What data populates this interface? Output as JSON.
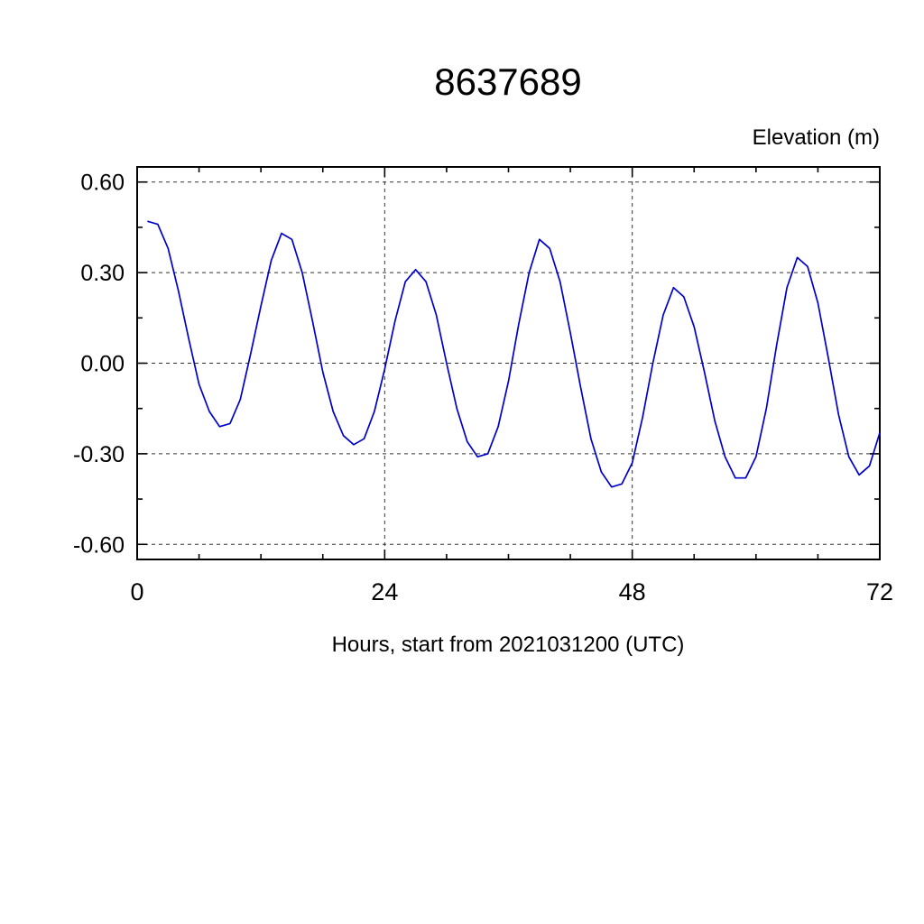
{
  "chart_data": {
    "type": "line",
    "title": "8637689",
    "ylabel": "Elevation (m)",
    "ylabel_position": "top-right",
    "xlabel": "Hours, start from 2021031200 (UTC)",
    "xlim": [
      0,
      72
    ],
    "ylim": [
      -0.65,
      0.65
    ],
    "grid": true,
    "legend": "none",
    "line_color": "#0000CC",
    "xtick_values": [
      0,
      24,
      48,
      72
    ],
    "xtick_labels": [
      "0",
      "24",
      "48",
      "72"
    ],
    "xtick_minor": [
      6,
      12,
      18,
      30,
      36,
      42,
      54,
      60,
      66
    ],
    "ytick_values": [
      0.6,
      0.3,
      0.0,
      -0.3,
      -0.6
    ],
    "ytick_labels": [
      "0.60",
      "0.30",
      "0.00",
      "-0.30",
      "-0.60"
    ],
    "ytick_minor": [
      0.45,
      0.15,
      -0.15,
      -0.45
    ],
    "xgrid": [
      24,
      48
    ],
    "ygrid": [
      0.6,
      0.3,
      0.0,
      -0.3,
      -0.6
    ],
    "series": [
      {
        "name": "elevation",
        "x": [
          1,
          2,
          3,
          4,
          5,
          6,
          7,
          8,
          9,
          10,
          11,
          12,
          13,
          14,
          15,
          16,
          17,
          18,
          19,
          20,
          21,
          22,
          23,
          24,
          25,
          26,
          27,
          28,
          29,
          30,
          31,
          32,
          33,
          34,
          35,
          36,
          37,
          38,
          39,
          40,
          41,
          42,
          43,
          44,
          45,
          46,
          47,
          48,
          49,
          50,
          51,
          52,
          53,
          54,
          55,
          56,
          57,
          58,
          59,
          60,
          61,
          62,
          63,
          64,
          65,
          66,
          67,
          68,
          69,
          70,
          71,
          72
        ],
        "y": [
          0.47,
          0.46,
          0.38,
          0.24,
          0.08,
          -0.07,
          -0.16,
          -0.21,
          -0.2,
          -0.12,
          0.03,
          0.19,
          0.34,
          0.43,
          0.41,
          0.3,
          0.14,
          -0.03,
          -0.16,
          -0.24,
          -0.27,
          -0.25,
          -0.16,
          -0.02,
          0.14,
          0.27,
          0.31,
          0.27,
          0.16,
          0.0,
          -0.15,
          -0.26,
          -0.31,
          -0.3,
          -0.21,
          -0.06,
          0.13,
          0.3,
          0.41,
          0.38,
          0.27,
          0.1,
          -0.08,
          -0.25,
          -0.36,
          -0.41,
          -0.4,
          -0.33,
          -0.18,
          0.0,
          0.16,
          0.25,
          0.22,
          0.12,
          -0.03,
          -0.19,
          -0.31,
          -0.38,
          -0.38,
          -0.31,
          -0.15,
          0.06,
          0.25,
          0.35,
          0.32,
          0.2,
          0.02,
          -0.17,
          -0.31,
          -0.37,
          -0.34,
          -0.23
        ]
      }
    ]
  }
}
